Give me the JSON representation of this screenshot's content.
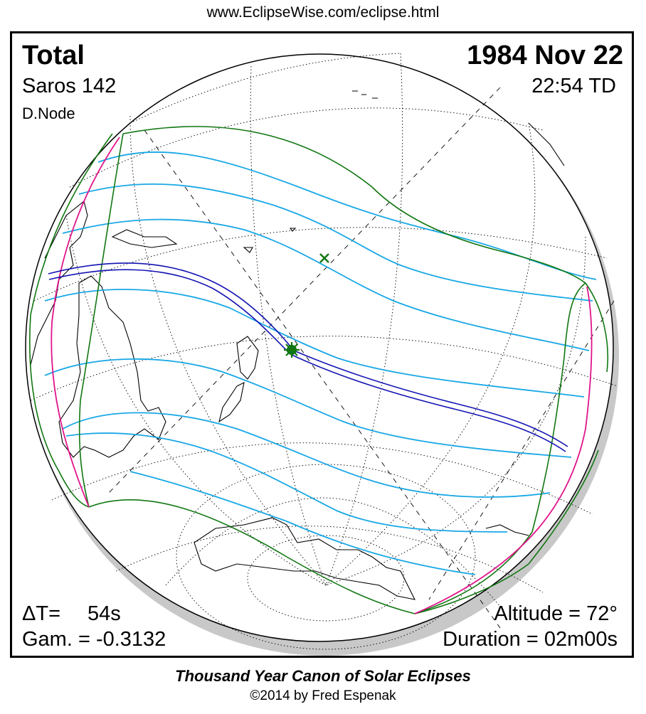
{
  "header": {
    "url": "www.EclipseWise.com/eclipse.html"
  },
  "eclipse": {
    "type": "Total",
    "date": "1984 Nov 22",
    "saros": "Saros 142",
    "time": "22:54 TD",
    "node": "D.Node",
    "delta_t_label": "ΔT=",
    "delta_t_value": "54s",
    "gamma": "Gam. = -0.3132",
    "altitude": "Altitude = 72°",
    "duration": "Duration = 02m00s"
  },
  "footer": {
    "title": "Thousand Year Canon of Solar Eclipses",
    "credit": "©2014 by Fred Espenak"
  },
  "colors": {
    "central_path": "#1414b4",
    "penumbral_limits": "#117711",
    "rise_set_curves": "#e0148c",
    "magnitude_curves": "#19a8e6",
    "coastlines": "#000000",
    "greatest_eclipse_marker": "#117711",
    "shadow_rim": "#c8c8c8"
  },
  "map_features": {
    "globe": "orthographic-globe",
    "graticule": "dotted-graticule",
    "terminator": "dashed-lines",
    "greatest_eclipse": "sun-star-icon",
    "subsolar_point": "x-marker-icon"
  }
}
